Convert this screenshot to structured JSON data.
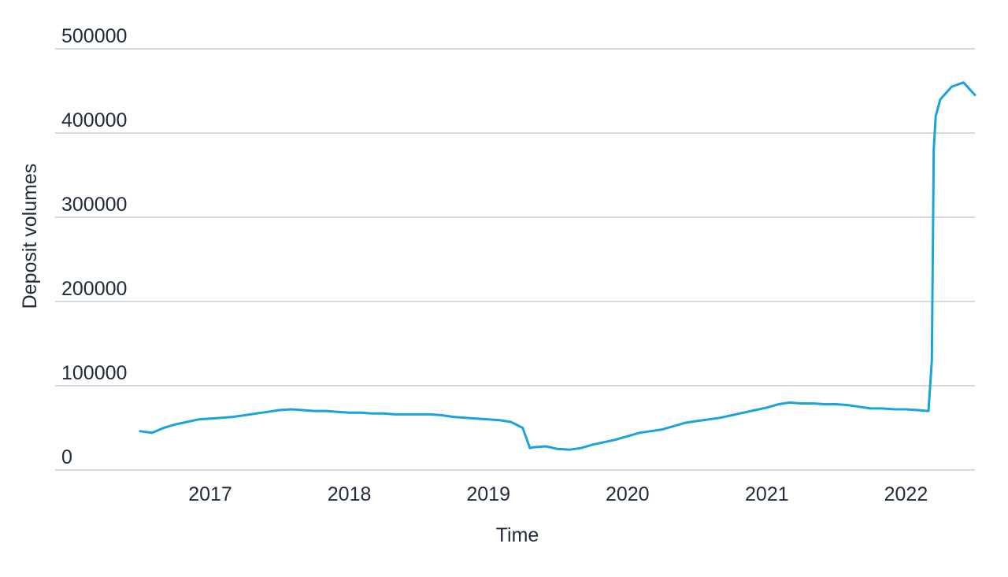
{
  "chart_data": {
    "type": "line",
    "title": "",
    "xlabel": "Time",
    "ylabel": "Deposit volumes",
    "x_range": [
      "2016-07",
      "2022-07"
    ],
    "ylim": [
      0,
      500000
    ],
    "y_ticks": [
      "0",
      "100000",
      "200000",
      "300000",
      "400000",
      "500000"
    ],
    "x_ticks": [
      "2017",
      "2018",
      "2019",
      "2020",
      "2021",
      "2022"
    ],
    "grid": "horizontal",
    "line_color": "#1aa3dc",
    "series": [
      {
        "name": "",
        "x": [
          "2016-07",
          "2016-08",
          "2016-09",
          "2016-10",
          "2016-11",
          "2016-12",
          "2017-01",
          "2017-02",
          "2017-03",
          "2017-04",
          "2017-05",
          "2017-06",
          "2017-07",
          "2017-08",
          "2017-09",
          "2017-10",
          "2017-11",
          "2017-12",
          "2018-01",
          "2018-02",
          "2018-03",
          "2018-04",
          "2018-05",
          "2018-06",
          "2018-07",
          "2018-08",
          "2018-09",
          "2018-10",
          "2018-11",
          "2018-12",
          "2019-01",
          "2019-02",
          "2019-03",
          "2019-04",
          "2019-04-20",
          "2019-05",
          "2019-06",
          "2019-07",
          "2019-08",
          "2019-09",
          "2019-10",
          "2019-11",
          "2019-12",
          "2020-01",
          "2020-02",
          "2020-03",
          "2020-04",
          "2020-05",
          "2020-06",
          "2020-07",
          "2020-08",
          "2020-09",
          "2020-10",
          "2020-11",
          "2020-12",
          "2021-01",
          "2021-02",
          "2021-03",
          "2021-04",
          "2021-05",
          "2021-06",
          "2021-07",
          "2021-08",
          "2021-09",
          "2021-10",
          "2021-11",
          "2021-12",
          "2022-01",
          "2022-02",
          "2022-03",
          "2022-03-10",
          "2022-03-15",
          "2022-03-20",
          "2022-04",
          "2022-05",
          "2022-06",
          "2022-07"
        ],
        "values": [
          46000,
          44000,
          50000,
          54000,
          57000,
          60000,
          61000,
          62000,
          63000,
          65000,
          67000,
          69000,
          71000,
          72000,
          71000,
          70000,
          70000,
          69000,
          68000,
          68000,
          67000,
          67000,
          66000,
          66000,
          66000,
          66000,
          65000,
          63000,
          62000,
          61000,
          60000,
          59000,
          57000,
          50000,
          26000,
          27000,
          28000,
          25000,
          24000,
          26000,
          30000,
          33000,
          36000,
          40000,
          44000,
          46000,
          48000,
          52000,
          56000,
          58000,
          60000,
          62000,
          65000,
          68000,
          71000,
          74000,
          78000,
          80000,
          79000,
          79000,
          78000,
          78000,
          77000,
          75000,
          73000,
          73000,
          72000,
          72000,
          71000,
          70000,
          130000,
          380000,
          420000,
          440000,
          455000,
          460000,
          445000
        ]
      }
    ]
  }
}
